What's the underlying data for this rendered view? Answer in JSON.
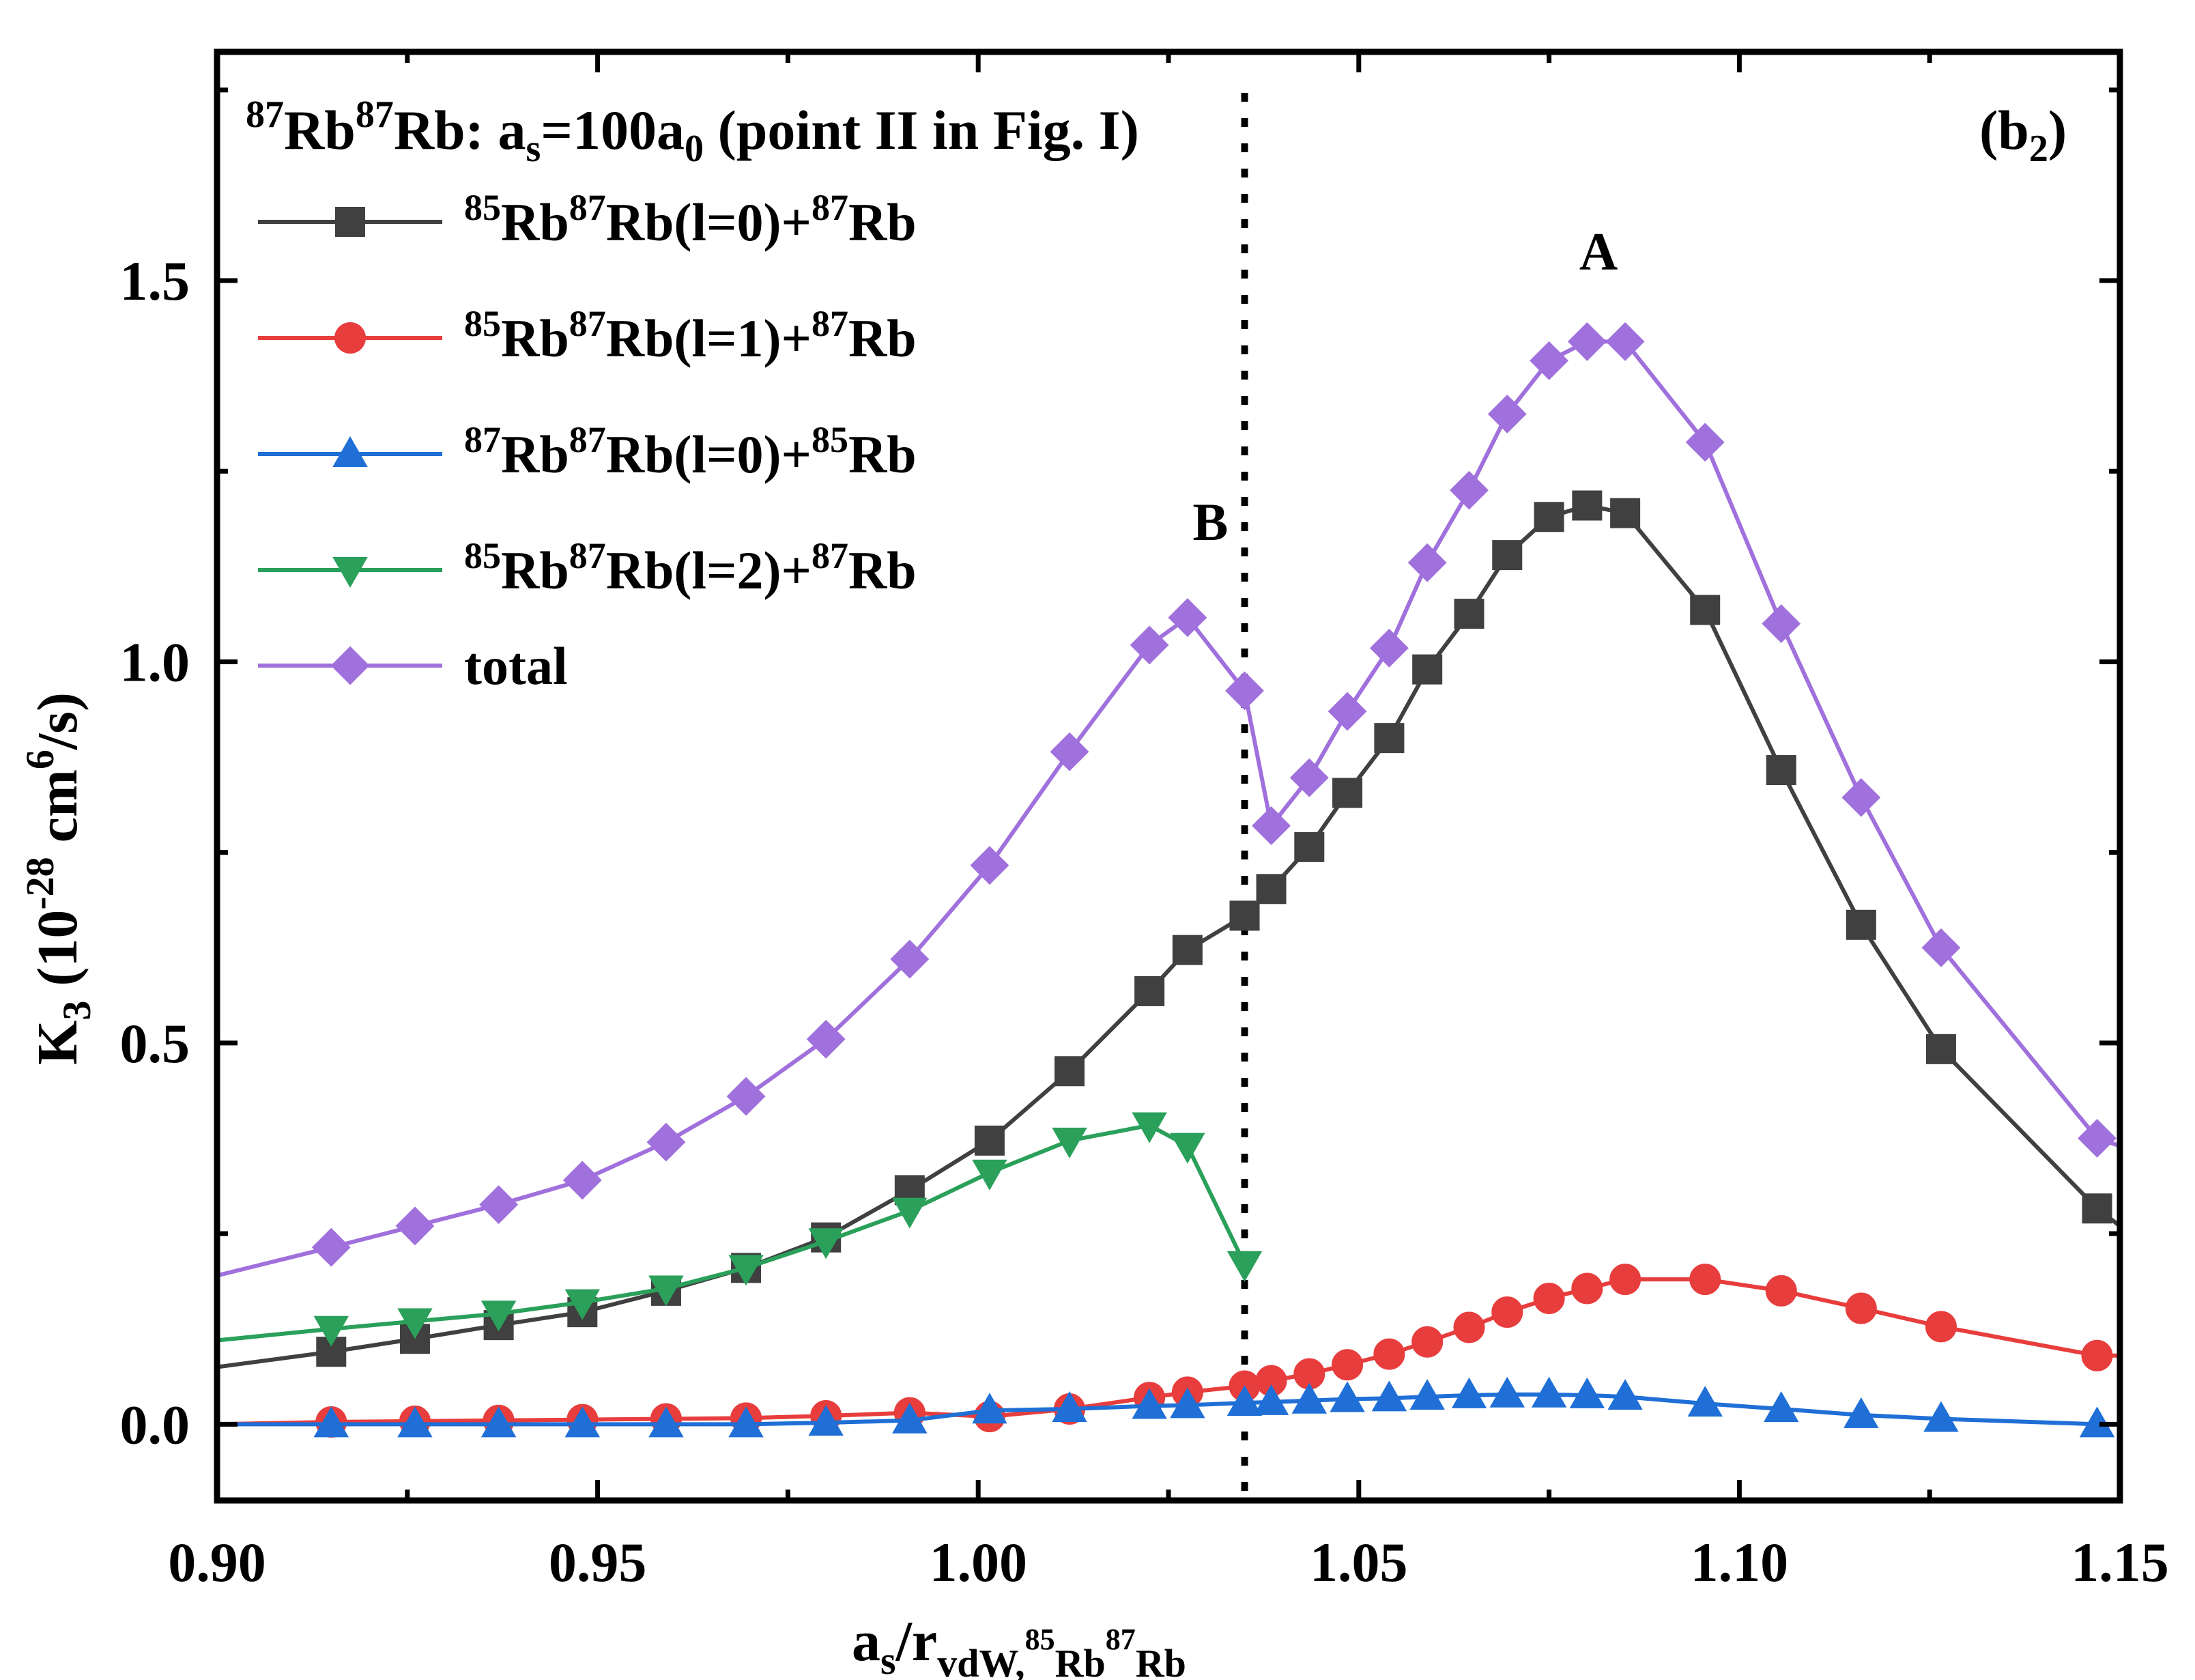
{
  "chart_data": {
    "type": "line",
    "panel_label": {
      "base": "(b",
      "sub": "2",
      "end": ")"
    },
    "title": {
      "p1_sup": "87",
      "p1": "Rb",
      "p2_sup": "87",
      "p2": "Rb: a",
      "p2_sub": "s",
      "p3": "=100a",
      "p3_sub": "0",
      "p4": " (point II in Fig. I)"
    },
    "xlabel": {
      "a": "a",
      "s": "s",
      "slash": "/r",
      "vdw": "vdW,",
      "iso1": "85",
      "rb1": "Rb",
      "iso2": "87",
      "rb2": "Rb"
    },
    "ylabel": {
      "k": "K",
      "k_sub": "3",
      "open": " (10",
      "exp": "-28",
      "cm": " cm",
      "cm_exp": "6",
      "tail": "/s)"
    },
    "xlim": [
      0.9,
      1.15
    ],
    "ylim": [
      -0.1,
      1.8
    ],
    "xticks": [
      0.9,
      0.95,
      1.0,
      1.05,
      1.1,
      1.15
    ],
    "xtick_labels": [
      "0.90",
      "0.95",
      "1.00",
      "1.05",
      "1.10",
      "1.15"
    ],
    "yticks": [
      0.0,
      0.5,
      1.0,
      1.5
    ],
    "ytick_labels": [
      "0.0",
      "0.5",
      "1.0",
      "1.5"
    ],
    "vline_x": 1.035,
    "annotations": [
      {
        "text": "A",
        "x": 1.0815,
        "y": 1.515
      },
      {
        "text": "B",
        "x": 1.0305,
        "y": 1.16
      }
    ],
    "x": [
      0.9,
      0.915,
      0.926,
      0.937,
      0.948,
      0.959,
      0.9695,
      0.98,
      0.991,
      1.0015,
      1.012,
      1.0225,
      1.0275,
      1.035,
      1.0385,
      1.0435,
      1.0485,
      1.054,
      1.059,
      1.0645,
      1.0695,
      1.075,
      1.08,
      1.085,
      1.0955,
      1.1055,
      1.116,
      1.1265,
      1.147,
      1.15
    ],
    "series": [
      {
        "name": "85Rb87Rb(l=0)+87Rb",
        "color": "#404040",
        "marker": "square",
        "label": {
          "s1": "85",
          "t1": "Rb",
          "s2": "87",
          "t2": "Rb(l=0)+",
          "s3": "87",
          "t3": "Rb"
        },
        "values": [
          0.075,
          0.095,
          0.112,
          0.13,
          0.147,
          0.175,
          0.205,
          0.245,
          0.307,
          0.372,
          0.463,
          0.568,
          0.622,
          0.667,
          0.702,
          0.757,
          0.828,
          0.9,
          0.99,
          1.063,
          1.14,
          1.19,
          1.205,
          1.195,
          1.068,
          0.858,
          0.655,
          0.492,
          0.283,
          0.26
        ]
      },
      {
        "name": "85Rb87Rb(l=1)+87Rb",
        "color": "#e83d3d",
        "marker": "circle",
        "label": {
          "s1": "85",
          "t1": "Rb",
          "s2": "87",
          "t2": "Rb(l=1)+",
          "s3": "87",
          "t3": "Rb"
        },
        "values": [
          0.0,
          0.003,
          0.004,
          0.005,
          0.006,
          0.007,
          0.008,
          0.011,
          0.015,
          0.01,
          0.02,
          0.035,
          0.042,
          0.05,
          0.057,
          0.066,
          0.078,
          0.092,
          0.108,
          0.127,
          0.147,
          0.165,
          0.178,
          0.19,
          0.19,
          0.175,
          0.152,
          0.128,
          0.09,
          0.09
        ]
      },
      {
        "name": "87Rb87Rb(l=0)+85Rb",
        "color": "#1f6fd6",
        "marker": "triangle-up",
        "label": {
          "s1": "87",
          "t1": "Rb",
          "s2": "87",
          "t2": "Rb(l=0)+",
          "s3": "85",
          "t3": "Rb"
        },
        "values": [
          0.0,
          0.0,
          0.0,
          0.0,
          0.0,
          0.0,
          0.0,
          0.002,
          0.005,
          0.018,
          0.02,
          0.024,
          0.025,
          0.028,
          0.029,
          0.031,
          0.033,
          0.034,
          0.036,
          0.038,
          0.039,
          0.039,
          0.038,
          0.036,
          0.027,
          0.02,
          0.012,
          0.007,
          0.0,
          0.0
        ]
      },
      {
        "name": "85Rb87Rb(l=2)+87Rb",
        "color": "#2aa05a",
        "marker": "triangle-down",
        "label": {
          "s1": "85",
          "t1": "Rb",
          "s2": "87",
          "t2": "Rb(l=2)+",
          "s3": "87",
          "t3": "Rb"
        },
        "values": [
          0.11,
          0.125,
          0.135,
          0.145,
          0.16,
          0.178,
          0.205,
          0.24,
          0.28,
          0.33,
          0.372,
          0.392,
          0.365,
          0.21,
          null,
          null,
          null,
          null,
          null,
          null,
          null,
          null,
          null,
          null,
          null,
          null,
          null,
          null,
          null,
          null
        ]
      },
      {
        "name": "total",
        "color": "#a070dc",
        "marker": "diamond",
        "label": {
          "t1": "total"
        },
        "values": [
          0.195,
          0.232,
          0.26,
          0.288,
          0.32,
          0.37,
          0.43,
          0.505,
          0.61,
          0.733,
          0.882,
          1.022,
          1.058,
          0.962,
          0.785,
          0.848,
          0.935,
          1.018,
          1.13,
          1.225,
          1.325,
          1.395,
          1.42,
          1.42,
          1.288,
          1.05,
          0.822,
          0.625,
          0.375,
          0.365
        ]
      }
    ]
  }
}
